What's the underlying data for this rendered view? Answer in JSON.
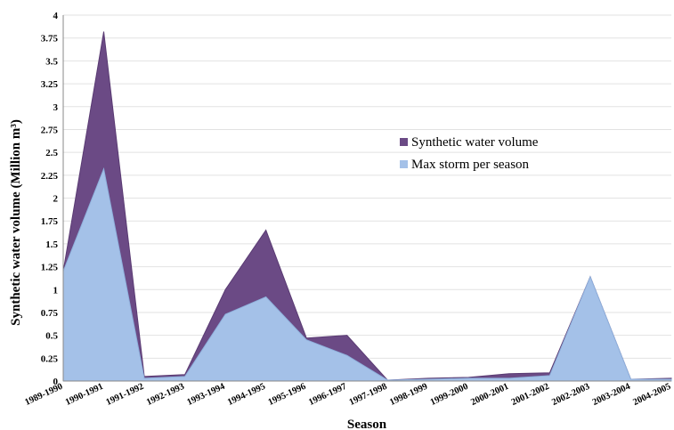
{
  "chart_data": {
    "type": "area",
    "stacked": true,
    "xlabel": "Season",
    "ylabel": "Synthetic water volume (Million m³)",
    "ylim": [
      0,
      4
    ],
    "yticks": [
      0,
      0.25,
      0.5,
      0.75,
      1,
      1.25,
      1.5,
      1.75,
      2,
      2.25,
      2.5,
      2.75,
      3,
      3.25,
      3.5,
      3.75,
      4
    ],
    "ytick_labels": [
      "0",
      "0.25",
      "0.5",
      "0.75",
      "1",
      "1.25",
      "1.5",
      "1.75",
      "2",
      "2.25",
      "2.5",
      "2.75",
      "3",
      "3.25",
      "3.5",
      "3.75",
      "4"
    ],
    "grid": true,
    "legend_position": "right",
    "categories": [
      "1989-1990",
      "1990-1991",
      "1991-1992",
      "1992-1993",
      "1993-1994",
      "1994-1995",
      "1995-1996",
      "1996-1997",
      "1997-1998",
      "1998-1999",
      "1999-2000",
      "2000-2001",
      "2001-2002",
      "2002-2003",
      "2003-2004",
      "2004-2005"
    ],
    "series": [
      {
        "name": "Max storm per season",
        "color": "#a4c1e8",
        "values": [
          1.2,
          2.32,
          0.03,
          0.05,
          0.73,
          0.92,
          0.45,
          0.28,
          0.01,
          0.02,
          0.03,
          0.03,
          0.06,
          1.14,
          0.02,
          0.02
        ]
      },
      {
        "name": "Synthetic water volume",
        "color": "#6b4a85",
        "values": [
          0.0,
          1.5,
          0.02,
          0.02,
          0.27,
          0.73,
          0.02,
          0.22,
          0.0,
          0.01,
          0.01,
          0.05,
          0.03,
          0.0,
          0.0,
          0.01
        ]
      }
    ]
  }
}
